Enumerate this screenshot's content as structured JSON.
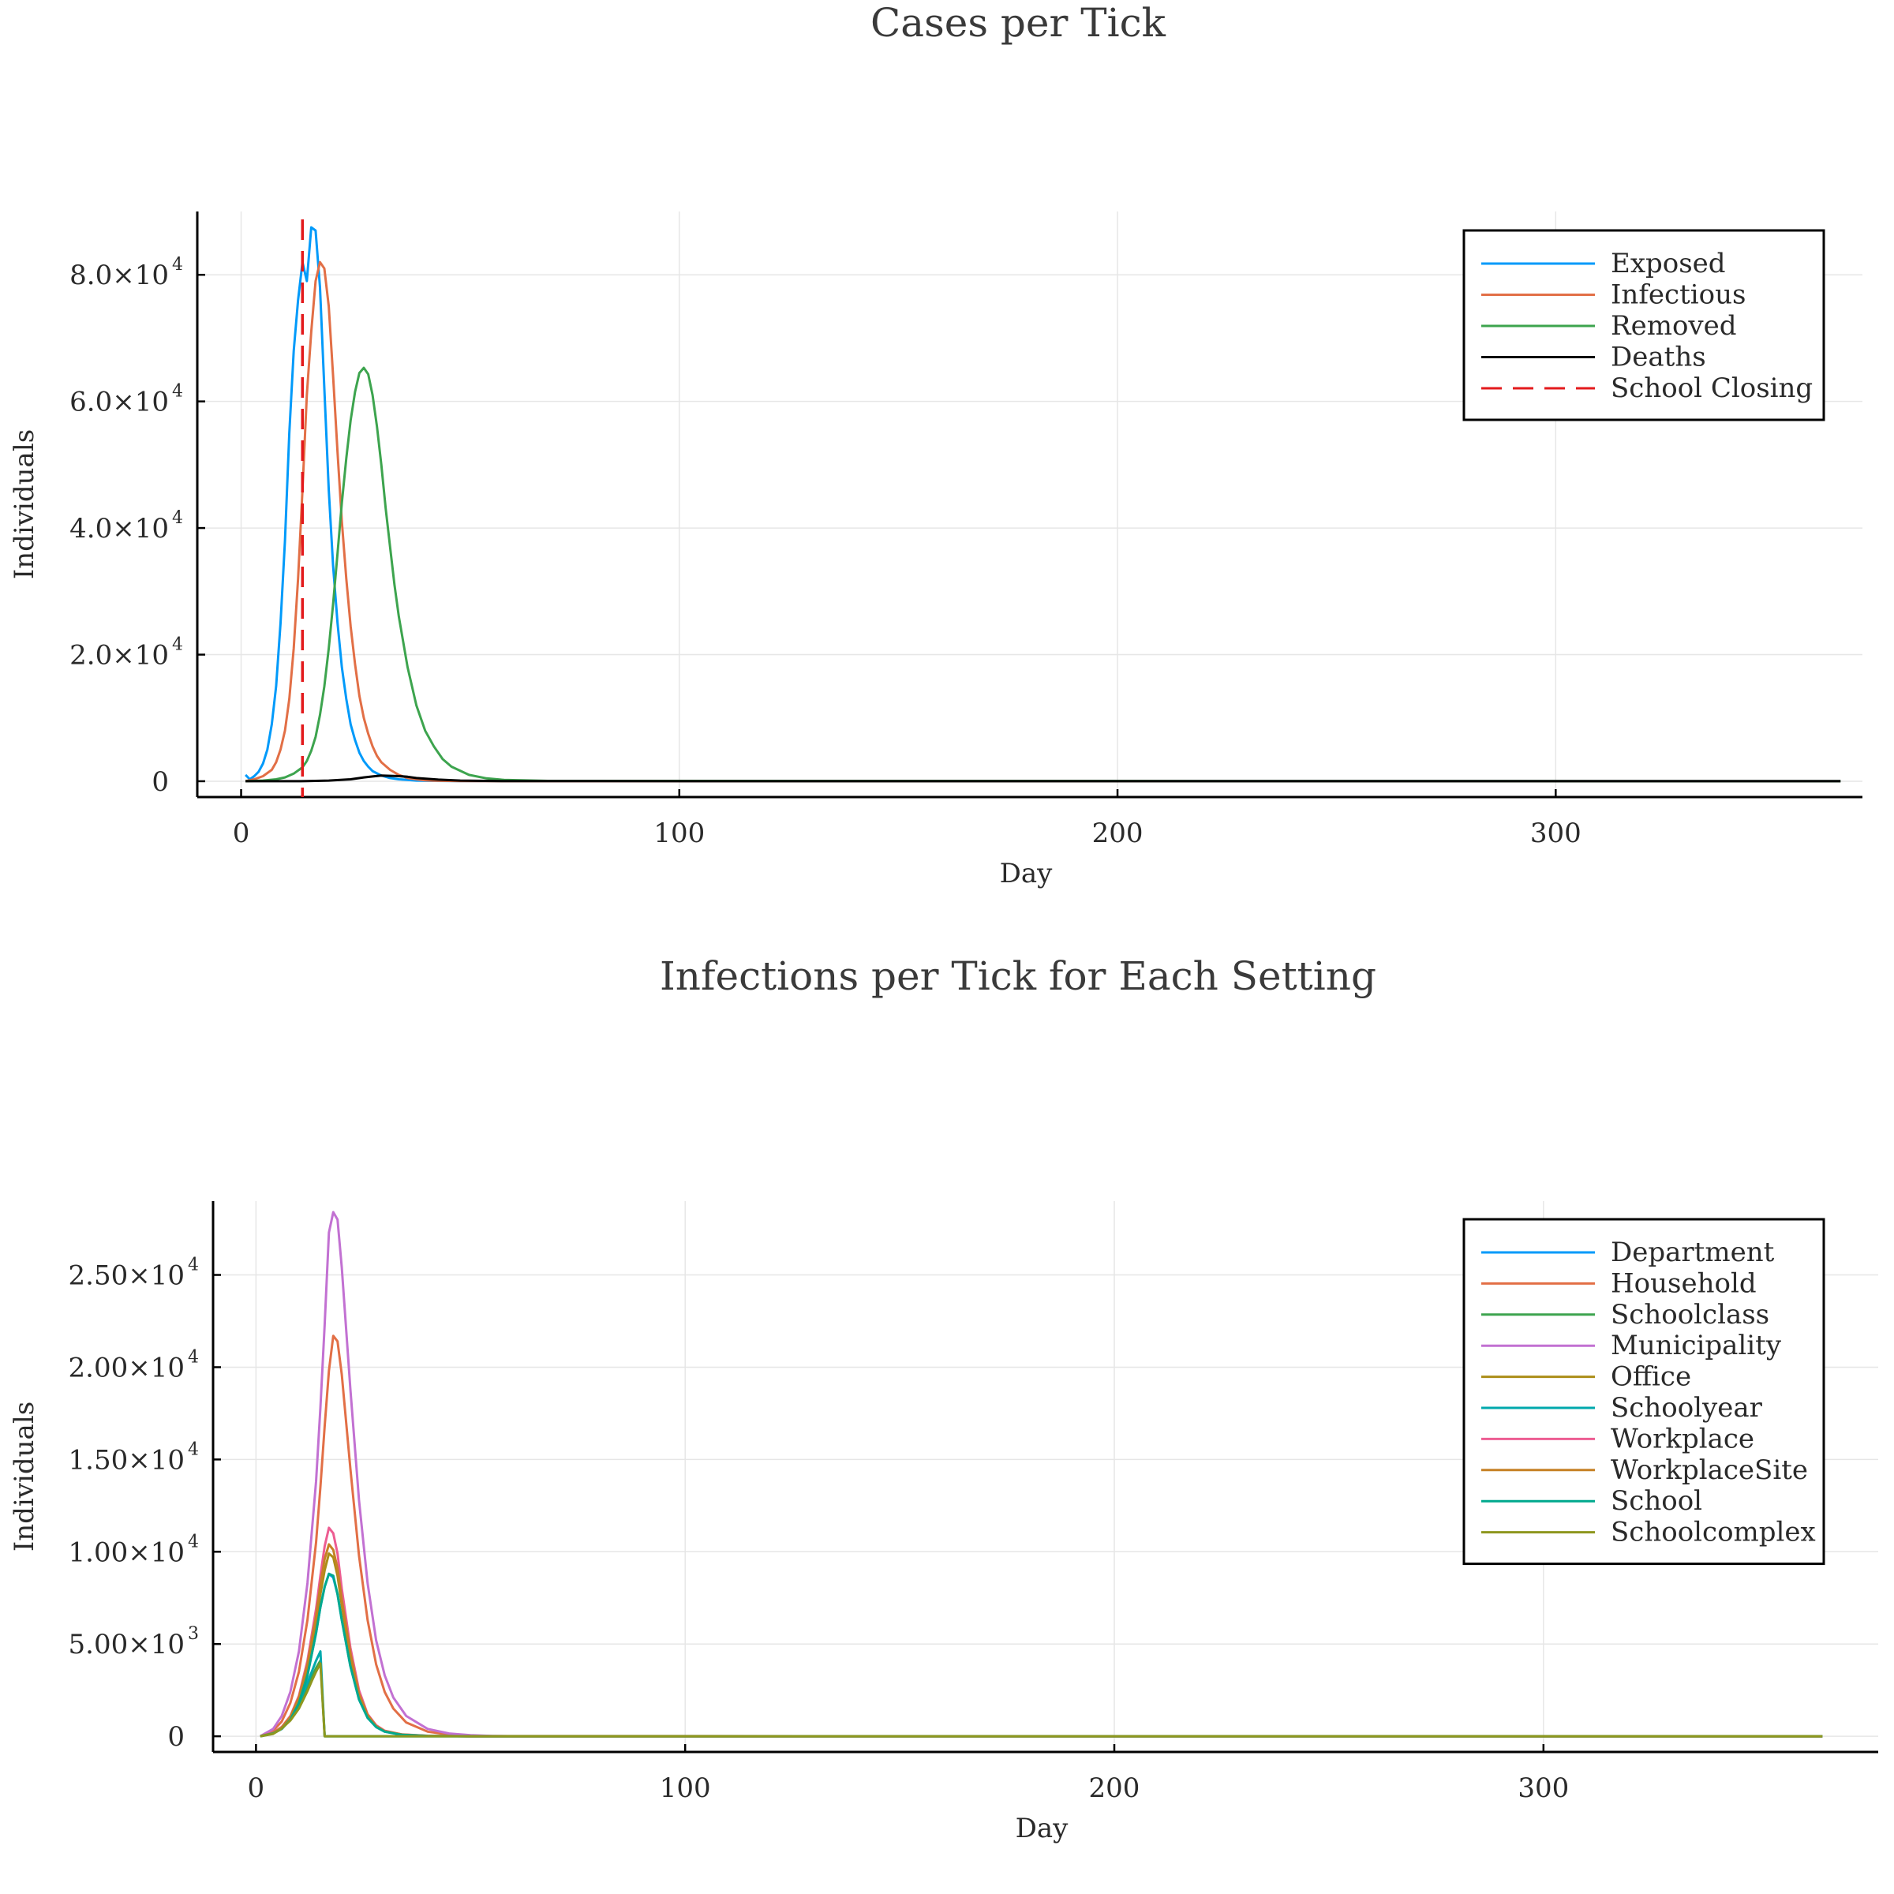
{
  "chart_data": [
    {
      "type": "line",
      "title": "Cases per Tick",
      "xlabel": "Day",
      "ylabel": "Individuals",
      "xlim": [
        -10,
        370
      ],
      "ylim": [
        -2500,
        90000
      ],
      "xticks": [
        0,
        100,
        200,
        300
      ],
      "xtick_labels": [
        "0",
        "100",
        "200",
        "300"
      ],
      "yticks": [
        0,
        20000,
        40000,
        60000,
        80000
      ],
      "ytick_labels": [
        {
          "mantissa": "0",
          "exponent": ""
        },
        {
          "mantissa": "2.0×10",
          "exponent": "4"
        },
        {
          "mantissa": "4.0×10",
          "exponent": "4"
        },
        {
          "mantissa": "6.0×10",
          "exponent": "4"
        },
        {
          "mantissa": "8.0×10",
          "exponent": "4"
        }
      ],
      "grid": true,
      "legend_position": "top-right",
      "series": [
        {
          "name": "Exposed",
          "color": "#009AFA",
          "dash": "",
          "x": [
            1,
            2,
            3,
            4,
            5,
            6,
            7,
            8,
            9,
            10,
            11,
            12,
            13,
            14,
            15,
            16,
            17,
            18,
            19,
            20,
            21,
            22,
            23,
            24,
            25,
            26,
            27,
            28,
            29,
            30,
            32,
            34,
            36,
            38,
            40,
            44,
            50,
            60,
            80,
            365
          ],
          "y": [
            1000,
            300,
            800,
            1500,
            2800,
            5000,
            9000,
            15000,
            25000,
            38000,
            55000,
            68000,
            76000,
            82000,
            79000,
            87500,
            87000,
            78000,
            62000,
            46000,
            34000,
            25000,
            18000,
            13000,
            9000,
            6500,
            4500,
            3200,
            2300,
            1600,
            900,
            500,
            300,
            200,
            100,
            50,
            20,
            10,
            0,
            0
          ]
        },
        {
          "name": "Infectious",
          "color": "#E26F46",
          "dash": "",
          "x": [
            1,
            3,
            5,
            7,
            8,
            9,
            10,
            11,
            12,
            13,
            14,
            15,
            16,
            17,
            18,
            19,
            20,
            21,
            22,
            23,
            24,
            25,
            26,
            27,
            28,
            29,
            30,
            31,
            32,
            34,
            36,
            38,
            40,
            42,
            44,
            50,
            60,
            80,
            365
          ],
          "y": [
            0,
            300,
            800,
            1800,
            3000,
            5000,
            8000,
            13000,
            21000,
            32000,
            46000,
            61000,
            71000,
            79000,
            82000,
            81000,
            75000,
            64000,
            52000,
            41000,
            32000,
            24500,
            18500,
            13500,
            10000,
            7500,
            5500,
            4000,
            3000,
            1800,
            1000,
            500,
            300,
            150,
            80,
            20,
            0,
            0,
            0
          ]
        },
        {
          "name": "Removed",
          "color": "#3DA44E",
          "dash": "",
          "x": [
            1,
            5,
            8,
            10,
            12,
            14,
            15,
            16,
            17,
            18,
            19,
            20,
            21,
            22,
            23,
            24,
            25,
            26,
            27,
            28,
            29,
            30,
            31,
            32,
            33,
            34,
            35,
            36,
            38,
            40,
            42,
            44,
            46,
            48,
            52,
            56,
            60,
            70,
            365
          ],
          "y": [
            0,
            100,
            300,
            600,
            1200,
            2200,
            3200,
            4800,
            7000,
            10500,
            15000,
            21000,
            28000,
            36000,
            44000,
            51000,
            57000,
            61500,
            64500,
            65300,
            64300,
            61000,
            56000,
            50000,
            43000,
            37000,
            31000,
            26000,
            18000,
            12000,
            8000,
            5500,
            3500,
            2300,
            1000,
            450,
            200,
            50,
            0
          ]
        },
        {
          "name": "Deaths",
          "color": "#000000",
          "dash": "",
          "x": [
            1,
            10,
            15,
            20,
            25,
            28,
            30,
            32,
            34,
            36,
            38,
            40,
            45,
            50,
            60,
            365
          ],
          "y": [
            0,
            0,
            20,
            100,
            300,
            600,
            750,
            900,
            850,
            800,
            700,
            500,
            250,
            100,
            20,
            0
          ]
        }
      ],
      "vlines": [
        {
          "name": "School Closing",
          "x": 14,
          "color": "#E31A1C",
          "dash": "26,14"
        }
      ]
    },
    {
      "type": "line",
      "title": "Infections per Tick for Each Setting",
      "xlabel": "Day",
      "ylabel": "Individuals",
      "xlim": [
        -10,
        378
      ],
      "ylim": [
        -850,
        29000
      ],
      "xticks": [
        0,
        100,
        200,
        300
      ],
      "xtick_labels": [
        "0",
        "100",
        "200",
        "300"
      ],
      "yticks": [
        0,
        5000,
        10000,
        15000,
        20000,
        25000
      ],
      "ytick_labels": [
        {
          "mantissa": "0",
          "exponent": ""
        },
        {
          "mantissa": "5.00×10",
          "exponent": "3"
        },
        {
          "mantissa": "1.00×10",
          "exponent": "4"
        },
        {
          "mantissa": "1.50×10",
          "exponent": "4"
        },
        {
          "mantissa": "2.00×10",
          "exponent": "4"
        },
        {
          "mantissa": "2.50×10",
          "exponent": "4"
        }
      ],
      "grid": true,
      "legend_position": "top-right",
      "series": [
        {
          "name": "Department",
          "color": "#009AFA",
          "dash": "",
          "x": [
            1,
            4,
            6,
            8,
            10,
            12,
            14,
            15,
            16,
            17,
            18,
            19,
            20,
            22,
            24,
            26,
            28,
            30,
            34,
            40,
            50,
            365
          ],
          "y": [
            0,
            150,
            400,
            900,
            1800,
            3300,
            5600,
            7000,
            8100,
            8800,
            8600,
            7700,
            6300,
            3800,
            2000,
            1000,
            500,
            250,
            80,
            20,
            0,
            0
          ]
        },
        {
          "name": "Household",
          "color": "#E26F46",
          "dash": "",
          "x": [
            1,
            4,
            6,
            8,
            10,
            12,
            14,
            15,
            16,
            17,
            18,
            19,
            20,
            22,
            24,
            26,
            28,
            30,
            32,
            35,
            40,
            45,
            50,
            55,
            365
          ],
          "y": [
            0,
            300,
            800,
            1800,
            3500,
            6300,
            10500,
            13500,
            16800,
            19800,
            21700,
            21400,
            19600,
            14500,
            9800,
            6300,
            3900,
            2400,
            1500,
            750,
            250,
            90,
            30,
            10,
            0
          ]
        },
        {
          "name": "Schoolclass",
          "color": "#3DA44E",
          "dash": "",
          "x": [
            1,
            4,
            6,
            8,
            10,
            12,
            13,
            14,
            15,
            16,
            365
          ],
          "y": [
            0,
            150,
            450,
            900,
            1600,
            2600,
            3200,
            3700,
            4100,
            0,
            0
          ]
        },
        {
          "name": "Municipality",
          "color": "#C271D2",
          "dash": "",
          "x": [
            1,
            4,
            6,
            8,
            10,
            12,
            14,
            15,
            16,
            17,
            18,
            19,
            20,
            22,
            24,
            26,
            28,
            30,
            32,
            35,
            40,
            45,
            50,
            55,
            60,
            365
          ],
          "y": [
            0,
            400,
            1100,
            2400,
            4600,
            8300,
            13800,
            17800,
            22300,
            27300,
            28400,
            28000,
            25400,
            18800,
            12800,
            8300,
            5200,
            3300,
            2100,
            1100,
            400,
            150,
            60,
            20,
            0,
            0
          ]
        },
        {
          "name": "Office",
          "color": "#AC8D18",
          "dash": "",
          "x": [
            1,
            4,
            6,
            8,
            10,
            12,
            14,
            15,
            16,
            17,
            18,
            19,
            20,
            22,
            24,
            26,
            28,
            30,
            34,
            40,
            50,
            365
          ],
          "y": [
            0,
            170,
            450,
            1000,
            2000,
            3700,
            6200,
            7700,
            9000,
            9900,
            9700,
            8700,
            7100,
            4300,
            2200,
            1100,
            550,
            270,
            90,
            20,
            0,
            0
          ]
        },
        {
          "name": "Schoolyear",
          "color": "#00A9AD",
          "dash": "",
          "x": [
            1,
            4,
            6,
            8,
            10,
            12,
            13,
            14,
            15,
            16,
            365
          ],
          "y": [
            0,
            170,
            500,
            1000,
            1800,
            2900,
            3500,
            4100,
            4600,
            0,
            0
          ]
        },
        {
          "name": "Workplace",
          "color": "#ED5D92",
          "dash": "",
          "x": [
            1,
            4,
            6,
            8,
            10,
            12,
            14,
            15,
            16,
            17,
            18,
            19,
            20,
            22,
            24,
            26,
            28,
            30,
            34,
            40,
            50,
            365
          ],
          "y": [
            0,
            200,
            500,
            1100,
            2200,
            4100,
            6900,
            8700,
            10300,
            11300,
            11000,
            9900,
            8000,
            4800,
            2500,
            1200,
            600,
            300,
            100,
            25,
            0,
            0
          ]
        },
        {
          "name": "WorkplaceSite",
          "color": "#C68125",
          "dash": "",
          "x": [
            1,
            4,
            6,
            8,
            10,
            12,
            14,
            15,
            16,
            17,
            18,
            19,
            20,
            22,
            24,
            26,
            28,
            30,
            34,
            40,
            50,
            365
          ],
          "y": [
            0,
            180,
            470,
            1050,
            2100,
            3900,
            6500,
            8200,
            9600,
            10400,
            10100,
            9100,
            7400,
            4500,
            2300,
            1150,
            560,
            280,
            95,
            22,
            0,
            0
          ]
        },
        {
          "name": "School",
          "color": "#00A98D",
          "dash": "",
          "x": [
            1,
            4,
            6,
            8,
            10,
            12,
            14,
            15,
            16,
            17,
            18,
            19,
            20,
            22,
            24,
            26,
            28,
            30,
            34,
            40,
            50,
            365
          ],
          "y": [
            0,
            150,
            400,
            900,
            1800,
            3300,
            5600,
            7000,
            8100,
            8800,
            8700,
            7700,
            6300,
            3800,
            2000,
            1000,
            500,
            250,
            80,
            20,
            0,
            0
          ]
        },
        {
          "name": "Schoolcomplex",
          "color": "#8E971E",
          "dash": "",
          "x": [
            1,
            4,
            6,
            8,
            10,
            12,
            13,
            14,
            15,
            16,
            365
          ],
          "y": [
            0,
            130,
            420,
            850,
            1500,
            2450,
            3000,
            3500,
            3950,
            0,
            0
          ]
        }
      ]
    }
  ]
}
